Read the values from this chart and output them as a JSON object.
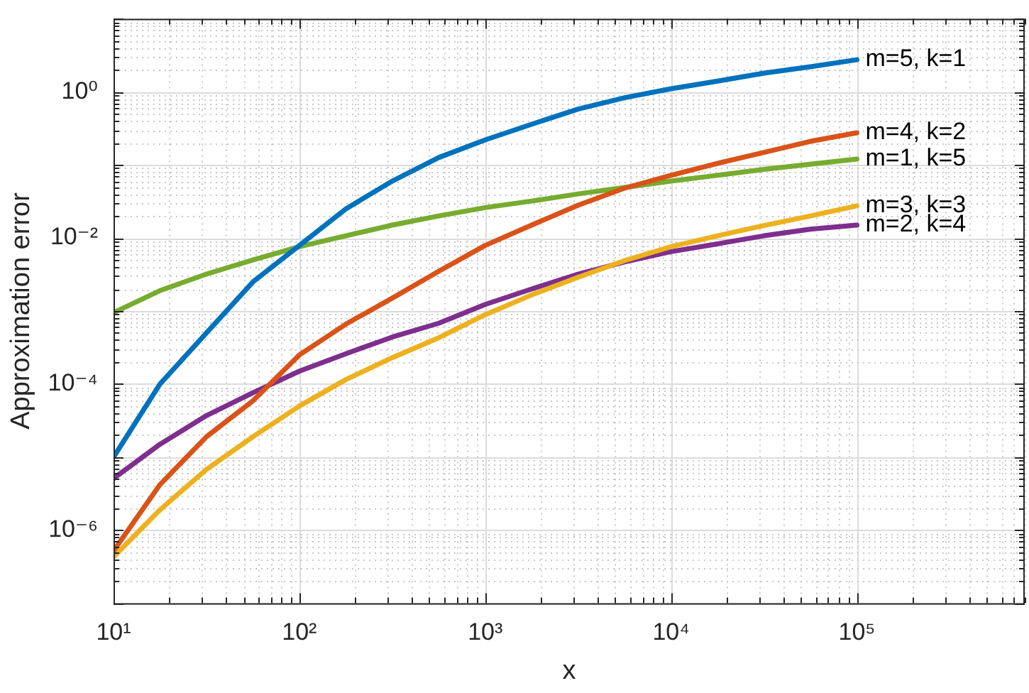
{
  "chart_data": {
    "type": "line",
    "xlabel": "x",
    "ylabel": "Approximation error",
    "log": "xy",
    "grid": true,
    "legend": false,
    "marker": "none",
    "line_style": "solid",
    "x": [
      10,
      17.78,
      31.62,
      56.23,
      100,
      177.8,
      316.2,
      562.3,
      1000,
      1778,
      3162,
      5623,
      10000,
      17780,
      31620,
      56230,
      100000
    ],
    "xlim": [
      10,
      800000
    ],
    "ylim": [
      1e-07,
      10
    ],
    "xticks": [
      {
        "value": 10,
        "label": "10¹"
      },
      {
        "value": 20,
        "label": null
      },
      {
        "value": 30,
        "label": null
      },
      {
        "value": 40,
        "label": null
      },
      {
        "value": 50,
        "label": null
      },
      {
        "value": 60,
        "label": null
      },
      {
        "value": 70,
        "label": null
      },
      {
        "value": 80,
        "label": null
      },
      {
        "value": 90,
        "label": null
      },
      {
        "value": 100,
        "label": "10²"
      },
      {
        "value": 200,
        "label": null
      },
      {
        "value": 300,
        "label": null
      },
      {
        "value": 400,
        "label": null
      },
      {
        "value": 500,
        "label": null
      },
      {
        "value": 600,
        "label": null
      },
      {
        "value": 700,
        "label": null
      },
      {
        "value": 800,
        "label": null
      },
      {
        "value": 900,
        "label": null
      },
      {
        "value": 1000,
        "label": "10³"
      },
      {
        "value": 2000,
        "label": null
      },
      {
        "value": 3000,
        "label": null
      },
      {
        "value": 4000,
        "label": null
      },
      {
        "value": 5000,
        "label": null
      },
      {
        "value": 6000,
        "label": null
      },
      {
        "value": 7000,
        "label": null
      },
      {
        "value": 8000,
        "label": null
      },
      {
        "value": 9000,
        "label": null
      },
      {
        "value": 10000,
        "label": "10⁴"
      },
      {
        "value": 20000,
        "label": null
      },
      {
        "value": 30000,
        "label": null
      },
      {
        "value": 40000,
        "label": null
      },
      {
        "value": 50000,
        "label": null
      },
      {
        "value": 60000,
        "label": null
      },
      {
        "value": 70000,
        "label": null
      },
      {
        "value": 80000,
        "label": null
      },
      {
        "value": 90000,
        "label": null
      },
      {
        "value": 100000,
        "label": "10⁵"
      },
      {
        "value": 200000,
        "label": null
      },
      {
        "value": 300000,
        "label": null
      },
      {
        "value": 400000,
        "label": null
      },
      {
        "value": 500000,
        "label": null
      },
      {
        "value": 600000,
        "label": null
      },
      {
        "value": 700000,
        "label": null
      },
      {
        "value": 800000,
        "label": null
      }
    ],
    "yticks": [
      {
        "value": 1e-07,
        "label": null
      },
      {
        "value": 2e-07,
        "label": null
      },
      {
        "value": 3e-07,
        "label": null
      },
      {
        "value": 4e-07,
        "label": null
      },
      {
        "value": 5e-07,
        "label": null
      },
      {
        "value": 6e-07,
        "label": null
      },
      {
        "value": 7e-07,
        "label": null
      },
      {
        "value": 8e-07,
        "label": null
      },
      {
        "value": 9e-07,
        "label": null
      },
      {
        "value": 1e-06,
        "label": "10⁻⁶"
      },
      {
        "value": 2e-06,
        "label": null
      },
      {
        "value": 3e-06,
        "label": null
      },
      {
        "value": 4e-06,
        "label": null
      },
      {
        "value": 5e-06,
        "label": null
      },
      {
        "value": 6e-06,
        "label": null
      },
      {
        "value": 7e-06,
        "label": null
      },
      {
        "value": 8e-06,
        "label": null
      },
      {
        "value": 9e-06,
        "label": null
      },
      {
        "value": 1e-05,
        "label": null
      },
      {
        "value": 2e-05,
        "label": null
      },
      {
        "value": 3e-05,
        "label": null
      },
      {
        "value": 4e-05,
        "label": null
      },
      {
        "value": 5e-05,
        "label": null
      },
      {
        "value": 6e-05,
        "label": null
      },
      {
        "value": 7e-05,
        "label": null
      },
      {
        "value": 8e-05,
        "label": null
      },
      {
        "value": 9e-05,
        "label": null
      },
      {
        "value": 0.0001,
        "label": "10⁻⁴"
      },
      {
        "value": 0.0002,
        "label": null
      },
      {
        "value": 0.0003,
        "label": null
      },
      {
        "value": 0.0004,
        "label": null
      },
      {
        "value": 0.0005,
        "label": null
      },
      {
        "value": 0.0006,
        "label": null
      },
      {
        "value": 0.0007,
        "label": null
      },
      {
        "value": 0.0008,
        "label": null
      },
      {
        "value": 0.0009,
        "label": null
      },
      {
        "value": 0.001,
        "label": null
      },
      {
        "value": 0.002,
        "label": null
      },
      {
        "value": 0.003,
        "label": null
      },
      {
        "value": 0.004,
        "label": null
      },
      {
        "value": 0.005,
        "label": null
      },
      {
        "value": 0.006,
        "label": null
      },
      {
        "value": 0.007,
        "label": null
      },
      {
        "value": 0.008,
        "label": null
      },
      {
        "value": 0.009,
        "label": null
      },
      {
        "value": 0.01,
        "label": "10⁻²"
      },
      {
        "value": 0.02,
        "label": null
      },
      {
        "value": 0.03,
        "label": null
      },
      {
        "value": 0.04,
        "label": null
      },
      {
        "value": 0.05,
        "label": null
      },
      {
        "value": 0.06,
        "label": null
      },
      {
        "value": 0.07,
        "label": null
      },
      {
        "value": 0.08,
        "label": null
      },
      {
        "value": 0.09,
        "label": null
      },
      {
        "value": 0.1,
        "label": null
      },
      {
        "value": 0.2,
        "label": null
      },
      {
        "value": 0.3,
        "label": null
      },
      {
        "value": 0.4,
        "label": null
      },
      {
        "value": 0.5,
        "label": null
      },
      {
        "value": 0.6,
        "label": null
      },
      {
        "value": 0.7,
        "label": null
      },
      {
        "value": 0.8,
        "label": null
      },
      {
        "value": 0.9,
        "label": null
      },
      {
        "value": 1,
        "label": "10⁰"
      },
      {
        "value": 2,
        "label": null
      },
      {
        "value": 3,
        "label": null
      },
      {
        "value": 4,
        "label": null
      },
      {
        "value": 5,
        "label": null
      },
      {
        "value": 6,
        "label": null
      },
      {
        "value": 7,
        "label": null
      },
      {
        "value": 8,
        "label": null
      },
      {
        "value": 9,
        "label": null
      },
      {
        "value": 10,
        "label": null
      }
    ],
    "series": [
      {
        "name": "m=5, k=1",
        "color": "#0072bd",
        "values": [
          1e-05,
          0.0001,
          0.0005,
          0.0025,
          0.0079,
          0.025,
          0.06,
          0.126,
          0.22,
          0.36,
          0.58,
          0.83,
          1.1,
          1.4,
          1.8,
          2.2,
          2.75
        ]
      },
      {
        "name": "m=4, k=2",
        "color": "#d95319",
        "values": [
          5.2e-07,
          4.2e-06,
          1.9e-05,
          5.9e-05,
          0.00025,
          0.00066,
          0.0015,
          0.0035,
          0.0079,
          0.015,
          0.028,
          0.048,
          0.072,
          0.105,
          0.148,
          0.21,
          0.275
        ]
      },
      {
        "name": "m=1, k=5",
        "color": "#77ac30",
        "values": [
          0.00095,
          0.0019,
          0.0032,
          0.005,
          0.0076,
          0.0107,
          0.015,
          0.02,
          0.026,
          0.032,
          0.04,
          0.049,
          0.06,
          0.072,
          0.087,
          0.102,
          0.12
        ]
      },
      {
        "name": "m=3, k=3",
        "color": "#edb120",
        "values": [
          4.3e-07,
          1.9e-06,
          6.8e-06,
          1.9e-05,
          5e-05,
          0.000115,
          0.00023,
          0.00043,
          0.00089,
          0.00166,
          0.0029,
          0.0049,
          0.0076,
          0.0107,
          0.0148,
          0.02,
          0.0275
        ]
      },
      {
        "name": "m=2, k=4",
        "color": "#7e2f8e",
        "values": [
          5.1e-06,
          1.5e-05,
          3.7e-05,
          7.6e-05,
          0.00015,
          0.00026,
          0.00044,
          0.00068,
          0.00123,
          0.002,
          0.0032,
          0.0047,
          0.0065,
          0.0083,
          0.0107,
          0.0132,
          0.015
        ]
      }
    ]
  }
}
